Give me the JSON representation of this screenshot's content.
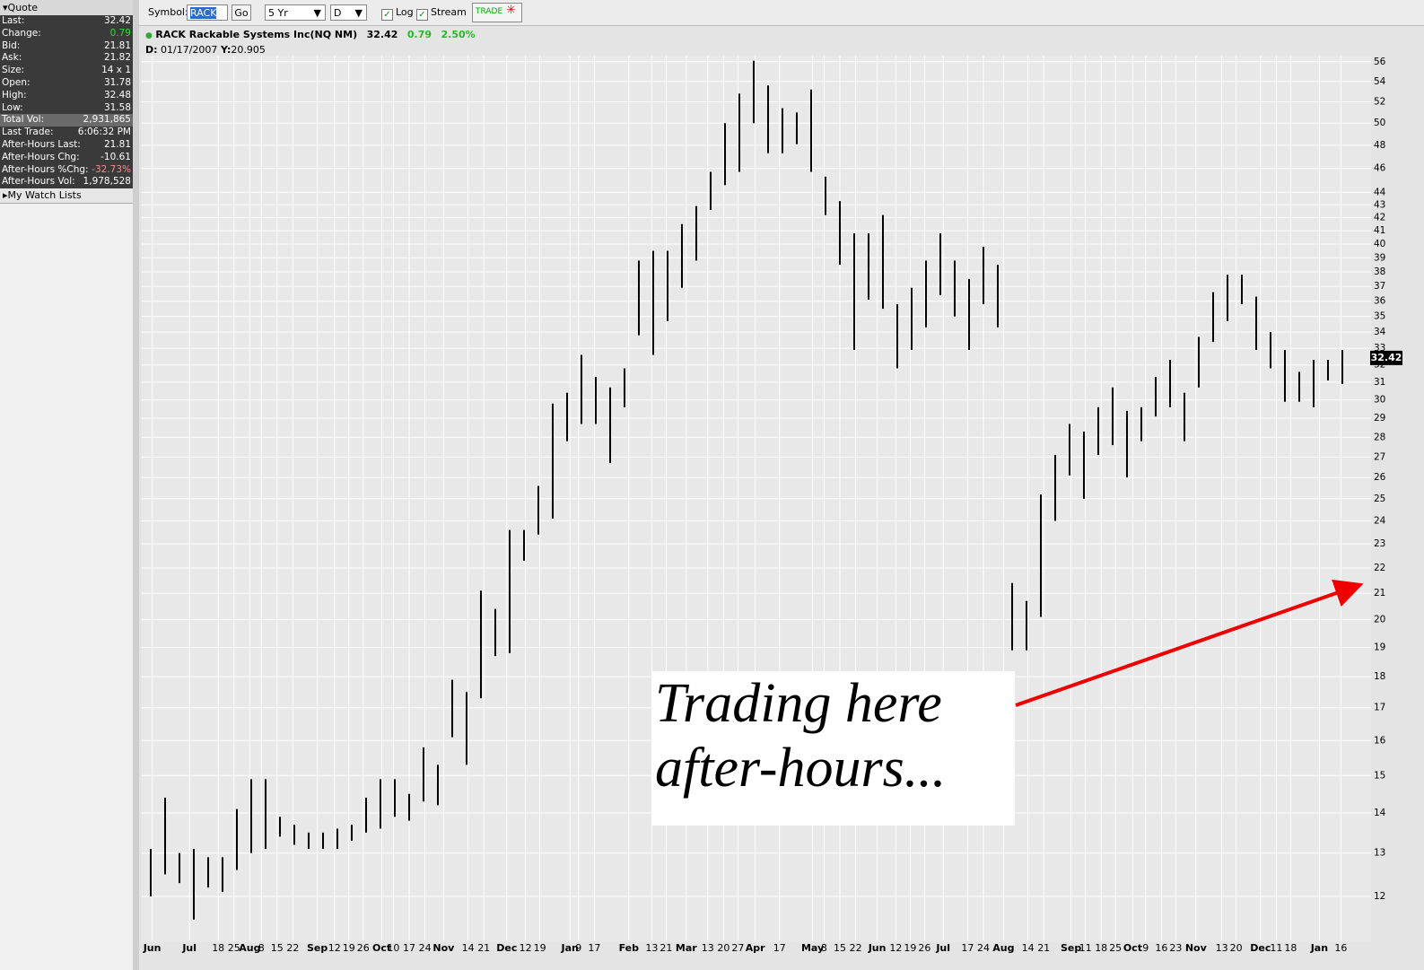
{
  "toolbar": {
    "symbol_label": "Symbol:",
    "symbol": "RACK",
    "go": "Go",
    "period": "5 Yr",
    "interval": "D",
    "log": "Log",
    "stream": "Stream",
    "trade": "TRADE"
  },
  "quote": {
    "title": "Quote",
    "rows": [
      {
        "label": "Last:",
        "value": "32.42"
      },
      {
        "label": "Change:",
        "value": "0.79",
        "color": "#33dd33"
      },
      {
        "label": "Bid:",
        "value": "21.81"
      },
      {
        "label": "Ask:",
        "value": "21.82"
      },
      {
        "label": "Size:",
        "value": "14 x 1"
      },
      {
        "label": "Open:",
        "value": "31.78"
      },
      {
        "label": "High:",
        "value": "32.48"
      },
      {
        "label": "Low:",
        "value": "31.58"
      },
      {
        "label": "Total Vol:",
        "value": "2,931,865"
      },
      {
        "label": "Last Trade:",
        "value": "6:06:32 PM"
      },
      {
        "label": "After-Hours Last:",
        "value": "21.81"
      },
      {
        "label": "After-Hours Chg:",
        "value": "-10.61"
      },
      {
        "label": "After-Hours %Chg:",
        "value": "-32.73%",
        "color": "#ff8a8a"
      },
      {
        "label": "After-Hours Vol:",
        "value": "1,978,528"
      }
    ]
  },
  "watch_lists": "My Watch Lists",
  "chart_header": {
    "name": "RACK Rackable Systems Inc(NQ NM)",
    "last": "32.42",
    "change": "0.79",
    "pct": "2.50%",
    "d_label": "D:",
    "date": "01/17/2007",
    "y_label": "Y:",
    "y_value": "20.905"
  },
  "chart_data": {
    "type": "hilo",
    "log_scale": true,
    "grid": true,
    "color": "#000000",
    "last": 32.42,
    "annotation": [
      "Trading here",
      "after-hours..."
    ],
    "xlim": [
      0,
      85.5
    ],
    "ylim": [
      11.4,
      57.2
    ],
    "yticks": [
      12,
      13,
      14,
      15,
      16,
      17,
      18,
      19,
      20,
      21,
      22,
      23,
      24,
      25,
      26,
      27,
      28,
      29,
      30,
      31,
      32,
      33,
      34,
      35,
      36,
      37,
      38,
      39,
      40,
      41,
      42,
      43,
      44,
      46,
      48,
      50,
      52,
      54,
      56
    ],
    "xticks": [
      {
        "value": 0.6,
        "label": "Jun"
      },
      {
        "value": 3.2,
        "label": "Jul"
      },
      {
        "value": 5.2,
        "label": "18"
      },
      {
        "value": 6.3,
        "label": "25"
      },
      {
        "value": 7.4,
        "label": "Aug"
      },
      {
        "value": 8.2,
        "label": "8"
      },
      {
        "value": 9.3,
        "label": "15"
      },
      {
        "value": 10.4,
        "label": "22"
      },
      {
        "value": 12.1,
        "label": "Sep"
      },
      {
        "value": 13.3,
        "label": "12"
      },
      {
        "value": 14.3,
        "label": "19"
      },
      {
        "value": 15.3,
        "label": "26"
      },
      {
        "value": 16.6,
        "label": "Oct"
      },
      {
        "value": 17.4,
        "label": "10"
      },
      {
        "value": 18.5,
        "label": "17"
      },
      {
        "value": 19.6,
        "label": "24"
      },
      {
        "value": 20.9,
        "label": "Nov"
      },
      {
        "value": 22.6,
        "label": "14"
      },
      {
        "value": 23.7,
        "label": "21"
      },
      {
        "value": 25.3,
        "label": "Dec"
      },
      {
        "value": 26.6,
        "label": "12"
      },
      {
        "value": 27.6,
        "label": "19"
      },
      {
        "value": 29.7,
        "label": "Jan"
      },
      {
        "value": 30.3,
        "label": "9"
      },
      {
        "value": 31.4,
        "label": "17"
      },
      {
        "value": 33.8,
        "label": "Feb"
      },
      {
        "value": 35.4,
        "label": "13"
      },
      {
        "value": 36.4,
        "label": "21"
      },
      {
        "value": 37.8,
        "label": "Mar"
      },
      {
        "value": 39.3,
        "label": "13"
      },
      {
        "value": 40.4,
        "label": "20"
      },
      {
        "value": 41.4,
        "label": "27"
      },
      {
        "value": 42.6,
        "label": "Apr"
      },
      {
        "value": 44.3,
        "label": "17"
      },
      {
        "value": 46.6,
        "label": "May"
      },
      {
        "value": 47.4,
        "label": "8"
      },
      {
        "value": 48.5,
        "label": "15"
      },
      {
        "value": 49.6,
        "label": "22"
      },
      {
        "value": 51.1,
        "label": "Jun"
      },
      {
        "value": 52.4,
        "label": "12"
      },
      {
        "value": 53.4,
        "label": "19"
      },
      {
        "value": 54.4,
        "label": "26"
      },
      {
        "value": 55.7,
        "label": "Jul"
      },
      {
        "value": 57.4,
        "label": "17"
      },
      {
        "value": 58.5,
        "label": "24"
      },
      {
        "value": 59.9,
        "label": "Aug"
      },
      {
        "value": 61.6,
        "label": "14"
      },
      {
        "value": 62.7,
        "label": "21"
      },
      {
        "value": 64.6,
        "label": "Sep"
      },
      {
        "value": 65.6,
        "label": "11"
      },
      {
        "value": 66.7,
        "label": "18"
      },
      {
        "value": 67.7,
        "label": "25"
      },
      {
        "value": 68.9,
        "label": "Oct"
      },
      {
        "value": 69.8,
        "label": "9"
      },
      {
        "value": 70.9,
        "label": "16"
      },
      {
        "value": 71.9,
        "label": "23"
      },
      {
        "value": 73.3,
        "label": "Nov"
      },
      {
        "value": 75.1,
        "label": "13"
      },
      {
        "value": 76.1,
        "label": "20"
      },
      {
        "value": 77.8,
        "label": "Dec"
      },
      {
        "value": 78.9,
        "label": "11"
      },
      {
        "value": 79.9,
        "label": "18"
      },
      {
        "value": 81.9,
        "label": "Jan"
      },
      {
        "value": 83.4,
        "label": "16"
      }
    ],
    "x": [
      0.5,
      1.5,
      2.5,
      3.5,
      4.5,
      5.5,
      6.5,
      7.5,
      8.5,
      9.5,
      10.5,
      11.5,
      12.5,
      13.5,
      14.5,
      15.5,
      16.5,
      17.5,
      18.5,
      19.5,
      20.5,
      21.5,
      22.5,
      23.5,
      24.5,
      25.5,
      26.5,
      27.5,
      28.5,
      29.5,
      30.5,
      31.5,
      32.5,
      33.5,
      34.5,
      35.5,
      36.5,
      37.5,
      38.5,
      39.5,
      40.5,
      41.5,
      42.5,
      43.5,
      44.5,
      45.5,
      46.5,
      47.5,
      48.5,
      49.5,
      50.5,
      51.5,
      52.5,
      53.5,
      54.5,
      55.5,
      56.5,
      57.5,
      58.5,
      59.5,
      60.5,
      61.5,
      62.5,
      63.5,
      64.5,
      65.5,
      66.5,
      67.5,
      68.5,
      69.5,
      70.5,
      71.5,
      72.5,
      73.5,
      74.5,
      75.5,
      76.5,
      77.5,
      78.5,
      79.5,
      80.5,
      81.5,
      82.5,
      83.5
    ],
    "high": [
      13.1,
      14.4,
      13.0,
      13.1,
      12.9,
      12.9,
      14.1,
      14.9,
      14.9,
      13.9,
      13.7,
      13.5,
      13.5,
      13.6,
      13.7,
      14.4,
      14.9,
      14.9,
      14.5,
      15.8,
      15.3,
      17.9,
      17.5,
      21.1,
      20.4,
      23.6,
      23.6,
      25.6,
      29.8,
      30.4,
      32.6,
      31.3,
      30.7,
      31.8,
      38.8,
      39.5,
      39.5,
      41.5,
      42.9,
      45.7,
      50.0,
      52.8,
      56.1,
      53.6,
      51.4,
      51.0,
      53.2,
      45.3,
      43.3,
      40.8,
      40.8,
      42.2,
      35.8,
      36.9,
      38.8,
      40.8,
      38.8,
      37.5,
      39.8,
      38.5,
      21.4,
      20.7,
      25.2,
      27.1,
      28.7,
      28.3,
      29.6,
      30.7,
      29.4,
      29.6,
      31.3,
      32.3,
      30.4,
      33.7,
      36.6,
      37.8,
      37.8,
      36.3,
      34.0,
      32.9,
      31.6,
      32.3,
      32.3,
      32.9
    ],
    "low": [
      12.0,
      12.5,
      12.3,
      11.5,
      12.2,
      12.1,
      12.6,
      13.0,
      13.1,
      13.4,
      13.2,
      13.1,
      13.1,
      13.1,
      13.3,
      13.5,
      13.6,
      13.9,
      13.8,
      14.3,
      14.2,
      16.1,
      15.3,
      17.3,
      18.7,
      18.8,
      22.3,
      23.4,
      24.1,
      27.8,
      28.7,
      28.7,
      26.7,
      29.6,
      33.8,
      32.6,
      34.7,
      36.9,
      38.8,
      42.6,
      44.6,
      45.7,
      50.0,
      47.3,
      47.3,
      48.1,
      45.7,
      42.2,
      38.5,
      32.9,
      36.1,
      35.5,
      31.8,
      32.9,
      34.3,
      36.4,
      35.0,
      32.9,
      35.8,
      34.3,
      18.9,
      18.9,
      20.1,
      24.0,
      26.1,
      25.0,
      27.1,
      27.6,
      26.0,
      27.8,
      29.1,
      29.6,
      27.8,
      30.7,
      33.4,
      34.7,
      35.8,
      32.9,
      31.8,
      29.9,
      29.9,
      29.6,
      31.1,
      30.9
    ]
  }
}
